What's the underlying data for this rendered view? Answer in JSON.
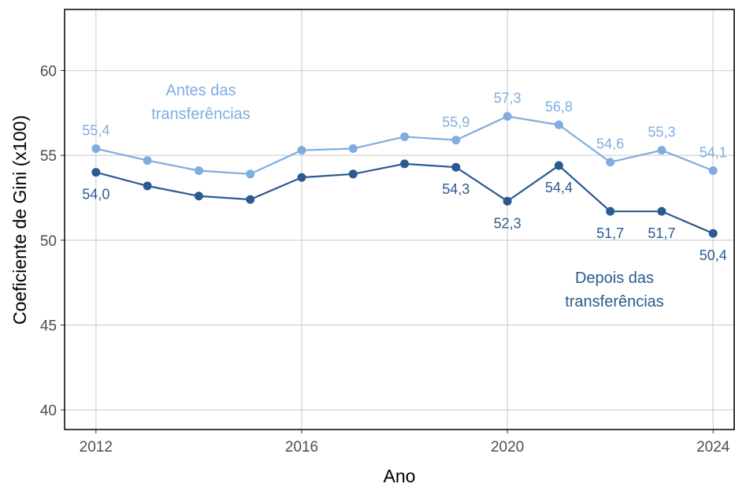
{
  "chart_data": {
    "type": "line",
    "x_label": "Ano",
    "y_label": "Coeficiente de Gini (x100)",
    "x": [
      2012,
      2013,
      2014,
      2015,
      2016,
      2017,
      2018,
      2019,
      2020,
      2021,
      2022,
      2023,
      2024
    ],
    "series": [
      {
        "name": "Antes das transferências",
        "color": "#7fade0",
        "values": [
          55.4,
          54.7,
          54.1,
          53.9,
          55.3,
          55.4,
          56.1,
          55.9,
          57.3,
          56.8,
          54.6,
          55.3,
          54.1
        ],
        "value_labels": [
          "55,4",
          null,
          null,
          null,
          null,
          null,
          null,
          "55,9",
          "57,3",
          "56,8",
          "54,6",
          "55,3",
          "54,1"
        ]
      },
      {
        "name": "Depois das transferências",
        "color": "#2b5a91",
        "values": [
          54.0,
          53.2,
          52.6,
          52.4,
          53.7,
          53.9,
          54.5,
          54.3,
          52.3,
          54.4,
          51.7,
          51.7,
          50.4
        ],
        "value_labels": [
          "54,0",
          null,
          null,
          null,
          null,
          null,
          null,
          "54,3",
          "52,3",
          "54,4",
          "51,7",
          "51,7",
          "50,4"
        ]
      }
    ],
    "xlim": [
      2011.39,
      2024.41
    ],
    "xticks": [
      2012,
      2016,
      2020,
      2024
    ],
    "ylim": [
      38.84,
      63.6
    ],
    "yticks": [
      40,
      45,
      50,
      55,
      60
    ],
    "grid": true
  }
}
